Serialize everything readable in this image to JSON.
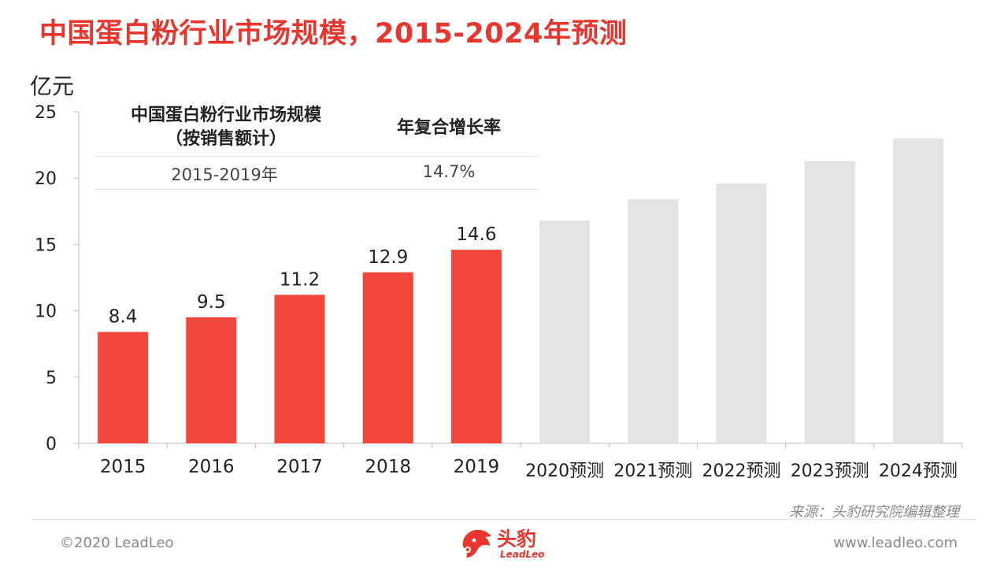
{
  "header": {
    "title": "中国蛋白粉行业市场规模，2015-2024年预测"
  },
  "summary_table": {
    "col1_header_line1": "中国蛋白粉行业市场规模",
    "col1_header_line2": "（按销售额计）",
    "col2_header": "年复合增长率",
    "period": "2015-2019年",
    "cagr": "14.7%"
  },
  "chart_data": {
    "type": "bar",
    "ylabel": "亿元",
    "ylim": [
      0,
      25
    ],
    "yticks": [
      "0",
      "5",
      "10",
      "15",
      "20",
      "25"
    ],
    "categories": [
      "2015",
      "2016",
      "2017",
      "2018",
      "2019",
      "2020预测",
      "2021预测",
      "2022预测",
      "2023预测",
      "2024预测"
    ],
    "values": [
      8.4,
      9.5,
      11.2,
      12.9,
      14.6,
      16.8,
      18.4,
      19.6,
      21.3,
      23.0
    ],
    "value_labels": [
      "8.4",
      "9.5",
      "11.2",
      "12.9",
      "14.6",
      "",
      "",
      "",
      "",
      ""
    ],
    "colors": {
      "actual": "#f0463b",
      "forecast": "#e3e3e3",
      "title": "#e8352e"
    }
  },
  "footer": {
    "source": "来源：头豹研究院编辑整理",
    "copyright": "©2020 LeadLeo",
    "website": "www.leadleo.com",
    "logo_text": "头豹",
    "logo_sub": "LeadLeo"
  }
}
